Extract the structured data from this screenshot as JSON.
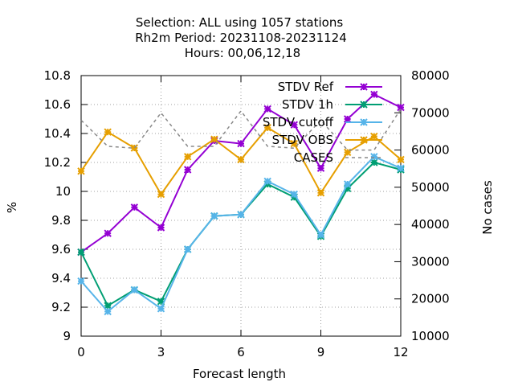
{
  "chart_data": {
    "type": "line",
    "title_lines": [
      "Selection: ALL using  1057 stations",
      "Rh2m   Period: 20231108-20231124",
      "Hours:  00,06,12,18"
    ],
    "xlabel": "Forecast length",
    "ylabel": "%",
    "y2label": "No cases",
    "x": [
      0,
      1,
      2,
      3,
      4,
      5,
      6,
      7,
      8,
      9,
      10,
      11,
      12
    ],
    "xticks": [
      "0",
      "3",
      "6",
      "9",
      "12"
    ],
    "xtick_values": [
      0,
      3,
      6,
      9,
      12
    ],
    "xlim": [
      0,
      12
    ],
    "ylim": [
      9,
      10.8
    ],
    "yticks": [
      "9",
      "9.2",
      "9.4",
      "9.6",
      "9.8",
      "10",
      "10.2",
      "10.4",
      "10.6",
      "10.8"
    ],
    "ytick_values": [
      9,
      9.2,
      9.4,
      9.6,
      9.8,
      10,
      10.2,
      10.4,
      10.6,
      10.8
    ],
    "y2lim": [
      10000,
      80000
    ],
    "y2ticks": [
      "10000",
      "20000",
      "30000",
      "40000",
      "50000",
      "60000",
      "70000",
      "80000"
    ],
    "y2tick_values": [
      10000,
      20000,
      30000,
      40000,
      50000,
      60000,
      70000,
      80000
    ],
    "grid": true,
    "legend_position": "top-right",
    "series": [
      {
        "name": "STDV Ref",
        "color": "#9400d3",
        "axis": "y",
        "values": [
          9.58,
          9.71,
          9.89,
          9.75,
          10.15,
          10.35,
          10.33,
          10.57,
          10.46,
          10.16,
          10.5,
          10.67,
          10.58
        ]
      },
      {
        "name": "STDV 1h",
        "color": "#009e73",
        "axis": "y",
        "values": [
          9.58,
          9.21,
          9.32,
          9.24,
          9.6,
          9.83,
          9.84,
          10.05,
          9.96,
          9.69,
          10.02,
          10.2,
          10.15
        ]
      },
      {
        "name": "STDV cutoff",
        "color": "#56b4e9",
        "axis": "y",
        "values": [
          9.38,
          9.17,
          9.32,
          9.19,
          9.6,
          9.83,
          9.84,
          10.07,
          9.98,
          9.7,
          10.05,
          10.24,
          10.16
        ]
      },
      {
        "name": "STDV OBS",
        "color": "#e69f00",
        "axis": "y",
        "values": [
          10.14,
          10.41,
          10.3,
          9.98,
          10.24,
          10.36,
          10.22,
          10.44,
          10.33,
          9.99,
          10.27,
          10.38,
          10.22
        ]
      },
      {
        "name": "CASES",
        "color": "#888888",
        "axis": "y2",
        "dashed": true,
        "values": [
          68000,
          61000,
          60500,
          70000,
          61000,
          61000,
          70500,
          61000,
          60500,
          68000,
          60000,
          60000,
          71000
        ]
      }
    ]
  }
}
